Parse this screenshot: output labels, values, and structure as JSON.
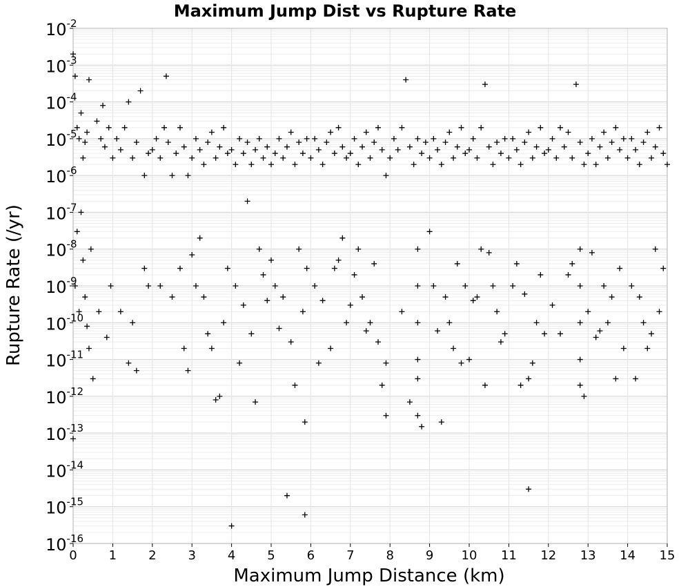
{
  "chart_data": {
    "type": "scatter",
    "title": "Maximum Jump Dist vs Rupture Rate",
    "xlabel": "Maximum Jump Distance (km)",
    "ylabel": "Rupture Rate (/yr)",
    "xlim": [
      0,
      15
    ],
    "ylim": [
      1e-16,
      0.01
    ],
    "xscale": "linear",
    "yscale": "log",
    "marker": "+",
    "marker_color": "#000000",
    "grid": true,
    "legend": "none",
    "x_ticks": [
      "0",
      "1",
      "2",
      "3",
      "4",
      "5",
      "6",
      "7",
      "8",
      "9",
      "10",
      "11",
      "12",
      "13",
      "14",
      "15"
    ],
    "y_ticks": [
      {
        "base": "10",
        "exp": "-2"
      },
      {
        "base": "10",
        "exp": "-3"
      },
      {
        "base": "10",
        "exp": "-4"
      },
      {
        "base": "10",
        "exp": "-5"
      },
      {
        "base": "10",
        "exp": "-6"
      },
      {
        "base": "10",
        "exp": "-7"
      },
      {
        "base": "10",
        "exp": "-8"
      },
      {
        "base": "10",
        "exp": "-9"
      },
      {
        "base": "10",
        "exp": "-10"
      },
      {
        "base": "10",
        "exp": "-11"
      },
      {
        "base": "10",
        "exp": "-12"
      },
      {
        "base": "10",
        "exp": "-13"
      },
      {
        "base": "10",
        "exp": "-14"
      },
      {
        "base": "10",
        "exp": "-15"
      },
      {
        "base": "10",
        "exp": "-16"
      }
    ],
    "points": [
      [
        0.0,
        0.002
      ],
      [
        0.0,
        7e-14
      ],
      [
        0.05,
        0.0005
      ],
      [
        0.1,
        2e-05
      ],
      [
        0.15,
        1e-05
      ],
      [
        0.2,
        5e-05
      ],
      [
        0.25,
        3e-06
      ],
      [
        0.3,
        8e-06
      ],
      [
        0.35,
        1.5e-05
      ],
      [
        0.4,
        0.0004
      ],
      [
        0.05,
        1e-09
      ],
      [
        0.1,
        3e-08
      ],
      [
        0.2,
        1e-07
      ],
      [
        0.3,
        5e-10
      ],
      [
        0.4,
        2e-11
      ],
      [
        0.5,
        3e-12
      ],
      [
        0.15,
        2e-10
      ],
      [
        0.25,
        5e-09
      ],
      [
        0.35,
        8e-11
      ],
      [
        0.45,
        1e-08
      ],
      [
        0.6,
        3e-05
      ],
      [
        0.7,
        1e-05
      ],
      [
        0.8,
        6e-06
      ],
      [
        0.9,
        2e-05
      ],
      [
        1.0,
        3e-06
      ],
      [
        0.75,
        8e-05
      ],
      [
        0.95,
        1e-09
      ],
      [
        0.85,
        4e-11
      ],
      [
        0.65,
        2e-10
      ],
      [
        1.1,
        1e-05
      ],
      [
        1.2,
        5e-06
      ],
      [
        1.3,
        2e-05
      ],
      [
        1.4,
        0.0001
      ],
      [
        1.5,
        3e-06
      ],
      [
        1.6,
        8e-06
      ],
      [
        1.7,
        0.0002
      ],
      [
        1.8,
        1e-06
      ],
      [
        1.9,
        4e-06
      ],
      [
        1.2,
        2e-10
      ],
      [
        1.5,
        1e-10
      ],
      [
        1.8,
        3e-09
      ],
      [
        1.6,
        5e-12
      ],
      [
        1.4,
        8e-12
      ],
      [
        1.9,
        1e-09
      ],
      [
        2.0,
        5e-06
      ],
      [
        2.1,
        1e-05
      ],
      [
        2.2,
        3e-06
      ],
      [
        2.3,
        2e-05
      ],
      [
        2.35,
        0.0005
      ],
      [
        2.4,
        8e-06
      ],
      [
        2.5,
        1e-06
      ],
      [
        2.6,
        4e-06
      ],
      [
        2.7,
        2e-05
      ],
      [
        2.8,
        6e-06
      ],
      [
        2.9,
        1e-06
      ],
      [
        2.2,
        1e-09
      ],
      [
        2.5,
        5e-10
      ],
      [
        2.7,
        3e-09
      ],
      [
        2.8,
        2e-11
      ],
      [
        2.9,
        5e-12
      ],
      [
        3.0,
        3e-06
      ],
      [
        3.1,
        1e-05
      ],
      [
        3.2,
        5e-06
      ],
      [
        3.3,
        2e-06
      ],
      [
        3.4,
        8e-06
      ],
      [
        3.5,
        1.5e-05
      ],
      [
        3.6,
        3e-06
      ],
      [
        3.7,
        6e-06
      ],
      [
        3.8,
        2e-05
      ],
      [
        3.9,
        4e-06
      ],
      [
        3.1,
        1e-09
      ],
      [
        3.3,
        5e-10
      ],
      [
        3.5,
        2e-11
      ],
      [
        3.6,
        8e-13
      ],
      [
        3.8,
        1e-10
      ],
      [
        3.9,
        3e-09
      ],
      [
        3.2,
        2e-08
      ],
      [
        3.4,
        5e-11
      ],
      [
        3.7,
        1e-12
      ],
      [
        3.0,
        7e-09
      ],
      [
        4.0,
        5e-06
      ],
      [
        4.1,
        2e-06
      ],
      [
        4.2,
        1e-05
      ],
      [
        4.3,
        4e-06
      ],
      [
        4.4,
        8e-06
      ],
      [
        4.5,
        2e-06
      ],
      [
        4.6,
        5e-06
      ],
      [
        4.7,
        1e-05
      ],
      [
        4.8,
        3e-06
      ],
      [
        4.9,
        6e-06
      ],
      [
        4.0,
        3e-16
      ],
      [
        4.1,
        1e-09
      ],
      [
        4.3,
        3e-10
      ],
      [
        4.5,
        5e-11
      ],
      [
        4.6,
        7e-13
      ],
      [
        4.7,
        1e-08
      ],
      [
        4.8,
        2e-09
      ],
      [
        4.9,
        4e-10
      ],
      [
        4.2,
        8e-12
      ],
      [
        4.4,
        2e-07
      ],
      [
        5.0,
        2e-06
      ],
      [
        5.1,
        4e-06
      ],
      [
        5.2,
        1e-05
      ],
      [
        5.3,
        3e-06
      ],
      [
        5.4,
        6e-06
      ],
      [
        5.5,
        1.5e-05
      ],
      [
        5.6,
        2e-06
      ],
      [
        5.7,
        8e-06
      ],
      [
        5.8,
        4e-06
      ],
      [
        5.9,
        1e-05
      ],
      [
        5.4,
        2e-15
      ],
      [
        5.1,
        1e-09
      ],
      [
        5.3,
        5e-10
      ],
      [
        5.5,
        3e-11
      ],
      [
        5.6,
        2e-12
      ],
      [
        5.7,
        1e-08
      ],
      [
        5.9,
        3e-09
      ],
      [
        5.2,
        7e-11
      ],
      [
        5.8,
        2e-10
      ],
      [
        5.0,
        5e-09
      ],
      [
        5.85,
        6e-16
      ],
      [
        5.85,
        2e-13
      ],
      [
        6.0,
        3e-06
      ],
      [
        6.1,
        1e-05
      ],
      [
        6.2,
        5e-06
      ],
      [
        6.3,
        2e-06
      ],
      [
        6.4,
        8e-06
      ],
      [
        6.5,
        1.5e-05
      ],
      [
        6.6,
        4e-06
      ],
      [
        6.7,
        2e-05
      ],
      [
        6.8,
        6e-06
      ],
      [
        6.9,
        3e-06
      ],
      [
        6.1,
        1e-09
      ],
      [
        6.3,
        4e-10
      ],
      [
        6.5,
        2e-11
      ],
      [
        6.7,
        5e-09
      ],
      [
        6.9,
        1e-10
      ],
      [
        6.2,
        8e-12
      ],
      [
        6.6,
        3e-09
      ],
      [
        6.8,
        2e-08
      ],
      [
        7.0,
        4e-06
      ],
      [
        7.1,
        1e-05
      ],
      [
        7.2,
        2e-06
      ],
      [
        7.3,
        6e-06
      ],
      [
        7.4,
        1.5e-05
      ],
      [
        7.5,
        3e-06
      ],
      [
        7.6,
        8e-06
      ],
      [
        7.7,
        2e-05
      ],
      [
        7.8,
        5e-06
      ],
      [
        7.9,
        1e-06
      ],
      [
        7.1,
        2e-09
      ],
      [
        7.3,
        5e-10
      ],
      [
        7.5,
        1e-10
      ],
      [
        7.7,
        3e-11
      ],
      [
        7.9,
        8e-12
      ],
      [
        7.2,
        1e-08
      ],
      [
        7.6,
        4e-09
      ],
      [
        7.8,
        2e-12
      ],
      [
        7.4,
        6e-11
      ],
      [
        7.0,
        3e-10
      ],
      [
        8.0,
        3e-06
      ],
      [
        8.1,
        1e-05
      ],
      [
        8.2,
        5e-06
      ],
      [
        8.3,
        2e-05
      ],
      [
        8.4,
        0.0004
      ],
      [
        8.5,
        6e-06
      ],
      [
        8.6,
        2e-06
      ],
      [
        8.7,
        1e-05
      ],
      [
        8.8,
        4e-06
      ],
      [
        8.9,
        8e-06
      ],
      [
        7.9,
        3e-13
      ],
      [
        8.7,
        3e-13
      ],
      [
        8.8,
        1.5e-13
      ],
      [
        8.7,
        3e-12
      ],
      [
        8.7,
        1e-11
      ],
      [
        8.7,
        1e-10
      ],
      [
        8.7,
        1e-09
      ],
      [
        8.7,
        1e-08
      ],
      [
        8.5,
        7e-13
      ],
      [
        8.3,
        2e-10
      ],
      [
        9.0,
        3e-06
      ],
      [
        9.1,
        1e-05
      ],
      [
        9.2,
        5e-06
      ],
      [
        9.3,
        2e-06
      ],
      [
        9.4,
        8e-06
      ],
      [
        9.5,
        1.5e-05
      ],
      [
        9.6,
        3e-06
      ],
      [
        9.7,
        6e-06
      ],
      [
        9.8,
        2e-05
      ],
      [
        9.9,
        4e-06
      ],
      [
        9.3,
        2e-13
      ],
      [
        9.1,
        1e-09
      ],
      [
        9.4,
        5e-10
      ],
      [
        9.6,
        2e-11
      ],
      [
        9.8,
        8e-12
      ],
      [
        9.0,
        3e-08
      ],
      [
        9.5,
        1e-10
      ],
      [
        9.7,
        4e-09
      ],
      [
        9.2,
        6e-11
      ],
      [
        9.9,
        1e-09
      ],
      [
        10.0,
        5e-06
      ],
      [
        10.1,
        1e-05
      ],
      [
        10.2,
        3e-06
      ],
      [
        10.3,
        2e-05
      ],
      [
        10.4,
        0.0003
      ],
      [
        10.5,
        6e-06
      ],
      [
        10.6,
        2e-06
      ],
      [
        10.7,
        8e-06
      ],
      [
        10.8,
        4e-06
      ],
      [
        10.9,
        1e-05
      ],
      [
        10.0,
        1e-11
      ],
      [
        10.2,
        5e-10
      ],
      [
        10.4,
        2e-12
      ],
      [
        10.6,
        1e-09
      ],
      [
        10.8,
        3e-11
      ],
      [
        10.5,
        8e-09
      ],
      [
        10.7,
        2e-10
      ],
      [
        10.9,
        5e-11
      ],
      [
        10.3,
        1e-08
      ],
      [
        10.1,
        4e-10
      ],
      [
        11.0,
        3e-06
      ],
      [
        11.1,
        1e-05
      ],
      [
        11.2,
        5e-06
      ],
      [
        11.3,
        2e-06
      ],
      [
        11.4,
        8e-06
      ],
      [
        11.5,
        1.5e-05
      ],
      [
        11.6,
        3e-06
      ],
      [
        11.7,
        6e-06
      ],
      [
        11.8,
        2e-05
      ],
      [
        11.9,
        4e-06
      ],
      [
        11.5,
        3e-15
      ],
      [
        11.1,
        1e-09
      ],
      [
        11.3,
        2e-12
      ],
      [
        11.5,
        3e-12
      ],
      [
        11.7,
        1e-10
      ],
      [
        11.9,
        5e-11
      ],
      [
        11.2,
        4e-09
      ],
      [
        11.6,
        8e-12
      ],
      [
        11.8,
        2e-09
      ],
      [
        11.4,
        6e-10
      ],
      [
        12.0,
        5e-06
      ],
      [
        12.1,
        1e-05
      ],
      [
        12.2,
        3e-06
      ],
      [
        12.3,
        2e-05
      ],
      [
        12.4,
        6e-06
      ],
      [
        12.5,
        1.5e-05
      ],
      [
        12.6,
        3e-06
      ],
      [
        12.7,
        0.0003
      ],
      [
        12.8,
        8e-06
      ],
      [
        12.9,
        2e-06
      ],
      [
        12.8,
        2e-12
      ],
      [
        12.8,
        1e-11
      ],
      [
        12.8,
        1e-10
      ],
      [
        12.8,
        1e-09
      ],
      [
        12.8,
        1e-08
      ],
      [
        12.1,
        3e-10
      ],
      [
        12.3,
        5e-11
      ],
      [
        12.5,
        2e-09
      ],
      [
        12.9,
        1e-12
      ],
      [
        12.6,
        4e-09
      ],
      [
        13.0,
        4e-06
      ],
      [
        13.1,
        1e-05
      ],
      [
        13.2,
        2e-06
      ],
      [
        13.3,
        6e-06
      ],
      [
        13.4,
        1.5e-05
      ],
      [
        13.5,
        3e-06
      ],
      [
        13.6,
        8e-06
      ],
      [
        13.7,
        2e-05
      ],
      [
        13.8,
        5e-06
      ],
      [
        13.9,
        1e-05
      ],
      [
        13.2,
        4e-11
      ],
      [
        13.4,
        1e-09
      ],
      [
        13.6,
        5e-10
      ],
      [
        13.8,
        3e-09
      ],
      [
        13.9,
        2e-11
      ],
      [
        13.1,
        8e-09
      ],
      [
        13.5,
        1e-10
      ],
      [
        13.7,
        3e-12
      ],
      [
        13.3,
        6e-11
      ],
      [
        13.0,
        2e-10
      ],
      [
        14.0,
        3e-06
      ],
      [
        14.1,
        1e-05
      ],
      [
        14.2,
        5e-06
      ],
      [
        14.3,
        2e-06
      ],
      [
        14.4,
        8e-06
      ],
      [
        14.5,
        1.5e-05
      ],
      [
        14.6,
        3e-06
      ],
      [
        14.7,
        6e-06
      ],
      [
        14.8,
        2e-05
      ],
      [
        14.9,
        4e-06
      ],
      [
        14.1,
        1e-09
      ],
      [
        14.3,
        5e-10
      ],
      [
        14.5,
        2e-11
      ],
      [
        14.7,
        1e-08
      ],
      [
        14.9,
        3e-09
      ],
      [
        14.2,
        3e-12
      ],
      [
        14.4,
        1e-10
      ],
      [
        14.6,
        5e-11
      ],
      [
        14.8,
        2e-10
      ],
      [
        15.0,
        2e-06
      ]
    ]
  }
}
